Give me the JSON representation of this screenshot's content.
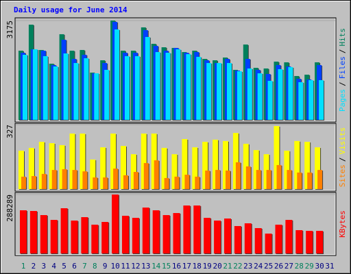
{
  "title": "Daily usage for June 2014",
  "categories": [
    "1",
    "2",
    "3",
    "4",
    "5",
    "6",
    "7",
    "8",
    "9",
    "10",
    "11",
    "12",
    "13",
    "14",
    "15",
    "16",
    "17",
    "18",
    "19",
    "20",
    "21",
    "22",
    "23",
    "24",
    "25",
    "26",
    "27",
    "28",
    "29",
    "30",
    "31"
  ],
  "category_colors": [
    "#00805c",
    "#000080",
    "#000080",
    "#000080",
    "#000080",
    "#000080",
    "#00805c",
    "#00805c",
    "#000080",
    "#000080",
    "#000080",
    "#000080",
    "#000080",
    "#00805c",
    "#00805c",
    "#000080",
    "#000080",
    "#000080",
    "#000080",
    "#000080",
    "#00805c",
    "#00805c",
    "#000080",
    "#000080",
    "#000080",
    "#000080",
    "#000080",
    "#00805c",
    "#00805c",
    "#000080",
    "#000080"
  ],
  "legend_separator": "/",
  "chart_data": [
    {
      "type": "bar",
      "ylim": [
        0,
        3175
      ],
      "yticks": [
        3175
      ],
      "series": [
        {
          "name": "Pages",
          "color": "#00e0ff",
          "values": [
            2081,
            2256,
            2037,
            1708,
            2124,
            1818,
            1971,
            1489,
            1599,
            2891,
            2037,
            2037,
            2650,
            2168,
            2146,
            2256,
            2102,
            2015,
            1818,
            1818,
            1818,
            1555,
            1643,
            1489,
            1248,
            1621,
            1686,
            1205,
            1270,
            1270,
            null
          ]
        },
        {
          "name": "Files",
          "color": "#0040ff",
          "values": [
            2146,
            2256,
            2212,
            1752,
            2562,
            1949,
            2081,
            1489,
            1818,
            3132,
            2146,
            2146,
            2869,
            2365,
            2212,
            2300,
            2146,
            2168,
            1905,
            1818,
            1949,
            1577,
            1949,
            1599,
            1467,
            1752,
            1708,
            1314,
            1292,
            1752,
            null
          ]
        },
        {
          "name": "Hits",
          "color": "#00805c",
          "values": [
            2212,
            3044,
            2234,
            1796,
            2738,
            2212,
            2234,
            1511,
            1905,
            3175,
            2212,
            2212,
            2957,
            2431,
            2321,
            2300,
            2168,
            2212,
            1949,
            1905,
            1993,
            1599,
            2409,
            1664,
            1643,
            1862,
            1840,
            1402,
            1445,
            1840,
            null
          ]
        }
      ]
    },
    {
      "type": "bar",
      "ylim": [
        0,
        327
      ],
      "yticks": [
        327
      ],
      "series": [
        {
          "name": "Sites",
          "color": "#ff8000",
          "values": [
            63,
            66,
            77,
            97,
            101,
            97,
            90,
            59,
            59,
            104,
            70,
            87,
            132,
            146,
            56,
            63,
            73,
            63,
            94,
            97,
            94,
            136,
            115,
            97,
            97,
            122,
            97,
            84,
            84,
            97,
            null
          ]
        },
        {
          "name": "Visits",
          "color": "#ffff00",
          "values": [
            195,
            209,
            240,
            233,
            223,
            282,
            282,
            150,
            212,
            282,
            219,
            177,
            282,
            282,
            209,
            177,
            254,
            212,
            240,
            251,
            244,
            285,
            230,
            198,
            177,
            320,
            195,
            244,
            240,
            212,
            null
          ]
        }
      ]
    },
    {
      "type": "bar",
      "ylim": [
        0,
        288289
      ],
      "yticks": [
        288289
      ],
      "series": [
        {
          "name": "KBytes",
          "color": "#ff0000",
          "values": [
            211176,
            207824,
            187712,
            164248,
            221232,
            160896,
            177656,
            140784,
            154192,
            288289,
            184360,
            174304,
            224584,
            211176,
            187712,
            197768,
            234640,
            234640,
            174304,
            160896,
            170952,
            134080,
            147488,
            124024,
            97208,
            140784,
            164248,
            113968,
            110616,
            110616,
            null
          ]
        }
      ]
    }
  ]
}
